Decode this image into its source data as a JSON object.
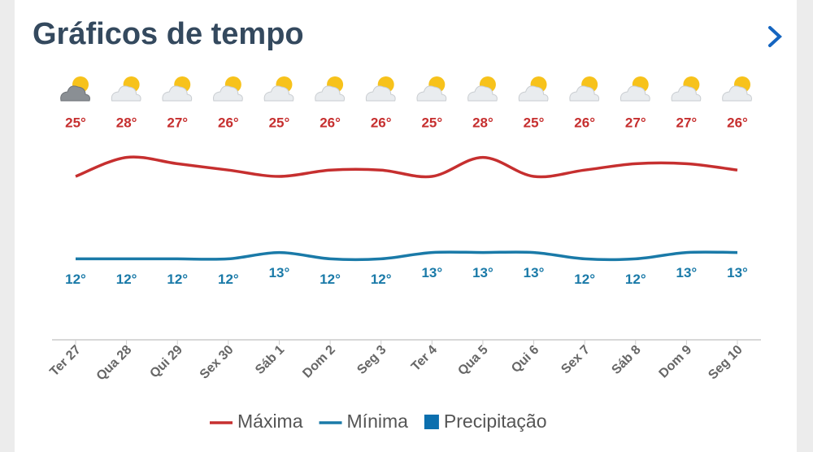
{
  "chart_data": {
    "type": "line",
    "title": "Gráficos de tempo",
    "categories": [
      "Ter 27",
      "Qua 28",
      "Qui 29",
      "Sex 30",
      "Sáb 1",
      "Dom 2",
      "Seg 3",
      "Ter 4",
      "Qua 5",
      "Qui 6",
      "Sex 7",
      "Sáb 8",
      "Dom 9",
      "Seg 10"
    ],
    "series": [
      {
        "name": "Máxima",
        "color": "#c62f2f",
        "values": [
          25,
          28,
          27,
          26,
          25,
          26,
          26,
          25,
          28,
          25,
          26,
          27,
          27,
          26
        ],
        "value_labels": [
          "25°",
          "28°",
          "27°",
          "26°",
          "25°",
          "26°",
          "26°",
          "25°",
          "28°",
          "25°",
          "26°",
          "27°",
          "27°",
          "26°"
        ]
      },
      {
        "name": "Mínima",
        "color": "#1a7aa8",
        "values": [
          12,
          12,
          12,
          12,
          13,
          12,
          12,
          13,
          13,
          13,
          12,
          12,
          13,
          13
        ],
        "value_labels": [
          "12°",
          "12°",
          "12°",
          "12°",
          "13°",
          "12°",
          "12°",
          "13°",
          "13°",
          "13°",
          "12°",
          "12°",
          "13°",
          "13°"
        ]
      },
      {
        "name": "Precipitação",
        "color": "#0b6fae",
        "values": [
          null,
          null,
          null,
          null,
          null,
          null,
          null,
          null,
          null,
          null,
          null,
          null,
          null,
          null
        ]
      }
    ],
    "ylim": [
      0,
      40
    ]
  }
}
